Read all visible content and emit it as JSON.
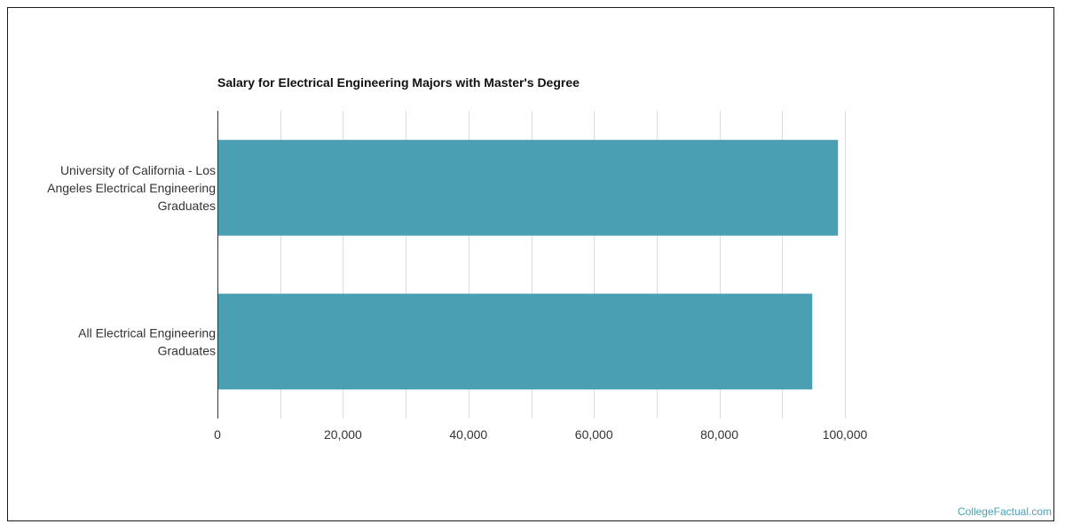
{
  "chart_data": {
    "type": "bar",
    "orientation": "horizontal",
    "title": "Salary for Electrical Engineering Majors with Master's Degree",
    "categories": [
      [
        "University of California - Los",
        "Angeles Electrical Engineering",
        "Graduates"
      ],
      [
        "All Electrical Engineering",
        "Graduates"
      ]
    ],
    "values": [
      98900,
      94800
    ],
    "xlim": [
      0,
      100000
    ],
    "xticks": [
      0,
      20000,
      40000,
      60000,
      80000,
      100000
    ],
    "xtick_labels": [
      "0",
      "20,000",
      "40,000",
      "60,000",
      "80,000",
      "100,000"
    ],
    "xlabel": "",
    "ylabel": "",
    "grid": true,
    "legend": "none",
    "colors": {
      "bar": "#4aa0b2",
      "grid": "#dddddd",
      "axis": "#333333",
      "label": "#333333",
      "credit": "#4aa0b5"
    }
  },
  "footer": {
    "credit": "CollegeFactual.com"
  }
}
